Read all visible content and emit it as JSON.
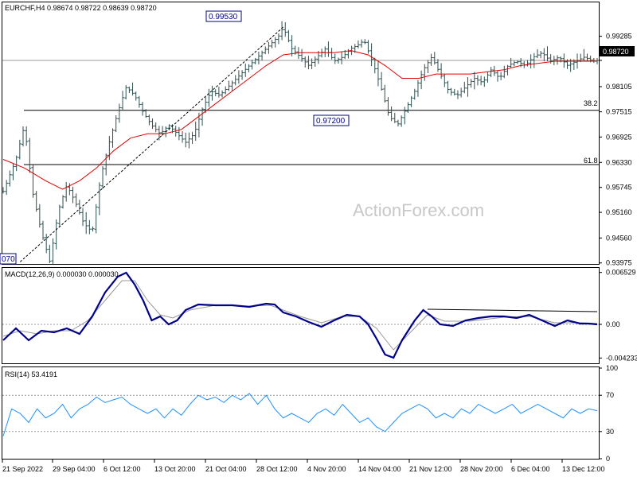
{
  "chart_data": [
    {
      "panel": "price",
      "type": "candlestick",
      "title": "EURCHF,H4  0.98674 0.98722 0.98639 0.98720",
      "ylim": [
        0.9397,
        1.0006
      ],
      "y_ticks": [
        "0.99285",
        "0.98720",
        "0.98105",
        "0.97515",
        "0.96925",
        "0.96330",
        "0.95745",
        "0.95160",
        "0.94560",
        "0.93975"
      ],
      "current_price": "0.98720",
      "high_label": "0.99530",
      "low_label": "0.97200",
      "left_edge_label": "070",
      "fib_levels": [
        {
          "label": "38.2",
          "value": 0.9755
        },
        {
          "label": "61.8",
          "value": 0.9628
        }
      ],
      "moving_average": "red",
      "watermark": "ActionForex.com",
      "path_points": [
        [
          0,
          0.9565
        ],
        [
          3,
          0.964
        ],
        [
          5,
          0.972
        ],
        [
          7,
          0.956
        ],
        [
          9,
          0.947
        ],
        [
          11,
          0.94
        ],
        [
          13,
          0.952
        ],
        [
          15,
          0.958
        ],
        [
          17,
          0.954
        ],
        [
          19,
          0.949
        ],
        [
          21,
          0.947
        ],
        [
          23,
          0.96
        ],
        [
          25,
          0.968
        ],
        [
          27,
          0.975
        ],
        [
          29,
          0.981
        ],
        [
          31,
          0.979
        ],
        [
          33,
          0.975
        ],
        [
          35,
          0.972
        ],
        [
          37,
          0.97
        ],
        [
          39,
          0.972
        ],
        [
          41,
          0.97
        ],
        [
          43,
          0.968
        ],
        [
          45,
          0.97
        ],
        [
          47,
          0.976
        ],
        [
          49,
          0.98
        ],
        [
          51,
          0.979
        ],
        [
          53,
          0.981
        ],
        [
          55,
          0.983
        ],
        [
          57,
          0.985
        ],
        [
          59,
          0.987
        ],
        [
          61,
          0.989
        ],
        [
          63,
          0.991
        ],
        [
          65,
          0.993
        ],
        [
          66,
          0.995
        ],
        [
          68,
          0.99
        ],
        [
          70,
          0.988
        ],
        [
          72,
          0.986
        ],
        [
          74,
          0.988
        ],
        [
          76,
          0.99
        ],
        [
          78,
          0.987
        ],
        [
          80,
          0.988
        ],
        [
          82,
          0.99
        ],
        [
          84,
          0.991
        ],
        [
          85,
          0.992
        ],
        [
          87,
          0.987
        ],
        [
          89,
          0.981
        ],
        [
          91,
          0.974
        ],
        [
          93,
          0.9722
        ],
        [
          95,
          0.976
        ],
        [
          97,
          0.98
        ],
        [
          99,
          0.985
        ],
        [
          101,
          0.988
        ],
        [
          103,
          0.984
        ],
        [
          105,
          0.98
        ],
        [
          107,
          0.979
        ],
        [
          109,
          0.981
        ],
        [
          111,
          0.983
        ],
        [
          113,
          0.982
        ],
        [
          115,
          0.985
        ],
        [
          117,
          0.983
        ],
        [
          119,
          0.986
        ],
        [
          121,
          0.987
        ],
        [
          123,
          0.986
        ],
        [
          125,
          0.988
        ],
        [
          127,
          0.989
        ],
        [
          129,
          0.987
        ],
        [
          131,
          0.988
        ],
        [
          133,
          0.986
        ],
        [
          135,
          0.987
        ],
        [
          137,
          0.988
        ],
        [
          139,
          0.987
        ],
        [
          140,
          0.9872
        ]
      ],
      "ma_points": [
        [
          0,
          0.964
        ],
        [
          5,
          0.962
        ],
        [
          10,
          0.959
        ],
        [
          14,
          0.957
        ],
        [
          18,
          0.959
        ],
        [
          22,
          0.962
        ],
        [
          26,
          0.966
        ],
        [
          30,
          0.969
        ],
        [
          34,
          0.97
        ],
        [
          38,
          0.97
        ],
        [
          42,
          0.971
        ],
        [
          46,
          0.974
        ],
        [
          50,
          0.977
        ],
        [
          54,
          0.98
        ],
        [
          58,
          0.983
        ],
        [
          62,
          0.986
        ],
        [
          66,
          0.9885
        ],
        [
          70,
          0.989
        ],
        [
          74,
          0.989
        ],
        [
          78,
          0.989
        ],
        [
          82,
          0.9895
        ],
        [
          86,
          0.9885
        ],
        [
          90,
          0.986
        ],
        [
          94,
          0.983
        ],
        [
          98,
          0.983
        ],
        [
          102,
          0.984
        ],
        [
          106,
          0.984
        ],
        [
          110,
          0.984
        ],
        [
          114,
          0.9845
        ],
        [
          118,
          0.985
        ],
        [
          122,
          0.986
        ],
        [
          126,
          0.9865
        ],
        [
          130,
          0.987
        ],
        [
          134,
          0.987
        ],
        [
          138,
          0.987
        ],
        [
          140,
          0.987
        ]
      ]
    },
    {
      "panel": "macd",
      "type": "line",
      "title": "MACD(12,26,9) 0.000030 0.000030",
      "ylim": [
        -0.0048,
        0.007
      ],
      "y_ticks": [
        "0.006529",
        "0.00",
        "-0.004233"
      ],
      "macd_points": [
        [
          0,
          -0.002
        ],
        [
          3,
          -0.0005
        ],
        [
          6,
          -0.002
        ],
        [
          9,
          -0.0008
        ],
        [
          12,
          -0.001
        ],
        [
          15,
          -0.0005
        ],
        [
          18,
          -0.0012
        ],
        [
          21,
          0.001
        ],
        [
          24,
          0.004
        ],
        [
          27,
          0.006
        ],
        [
          29,
          0.0065
        ],
        [
          31,
          0.005
        ],
        [
          33,
          0.003
        ],
        [
          35,
          0.0005
        ],
        [
          37,
          0.001
        ],
        [
          39,
          0.0
        ],
        [
          41,
          0.0005
        ],
        [
          43,
          0.0018
        ],
        [
          46,
          0.0025
        ],
        [
          50,
          0.0024
        ],
        [
          54,
          0.0024
        ],
        [
          58,
          0.0022
        ],
        [
          62,
          0.0026
        ],
        [
          64,
          0.0025
        ],
        [
          66,
          0.0015
        ],
        [
          69,
          0.001
        ],
        [
          72,
          0.0003
        ],
        [
          75,
          -0.0003
        ],
        [
          78,
          0.0005
        ],
        [
          81,
          0.0012
        ],
        [
          84,
          0.001
        ],
        [
          86,
          0.0
        ],
        [
          88,
          -0.0018
        ],
        [
          90,
          -0.0038
        ],
        [
          92,
          -0.0042
        ],
        [
          94,
          -0.002
        ],
        [
          97,
          0.0005
        ],
        [
          99,
          0.0018
        ],
        [
          101,
          0.001
        ],
        [
          103,
          0.0
        ],
        [
          106,
          -0.0002
        ],
        [
          109,
          0.0005
        ],
        [
          112,
          0.0008
        ],
        [
          115,
          0.001
        ],
        [
          118,
          0.001
        ],
        [
          121,
          0.0008
        ],
        [
          124,
          0.0012
        ],
        [
          127,
          0.0005
        ],
        [
          130,
          -0.0002
        ],
        [
          133,
          0.0005
        ],
        [
          136,
          0.0001
        ],
        [
          138,
          0.0001
        ],
        [
          140,
          0.0
        ]
      ],
      "signal_points": [
        [
          0,
          -0.0015
        ],
        [
          4,
          -0.0008
        ],
        [
          8,
          -0.0012
        ],
        [
          12,
          -0.0008
        ],
        [
          16,
          -0.0008
        ],
        [
          20,
          0.0005
        ],
        [
          24,
          0.003
        ],
        [
          28,
          0.0055
        ],
        [
          31,
          0.0055
        ],
        [
          34,
          0.003
        ],
        [
          37,
          0.0012
        ],
        [
          40,
          0.0008
        ],
        [
          44,
          0.0018
        ],
        [
          50,
          0.0024
        ],
        [
          58,
          0.0023
        ],
        [
          63,
          0.0024
        ],
        [
          66,
          0.0018
        ],
        [
          70,
          0.001
        ],
        [
          75,
          0.0002
        ],
        [
          80,
          0.001
        ],
        [
          84,
          0.001
        ],
        [
          88,
          -0.0005
        ],
        [
          92,
          -0.0032
        ],
        [
          96,
          -0.001
        ],
        [
          100,
          0.0012
        ],
        [
          104,
          0.0004
        ],
        [
          110,
          0.0004
        ],
        [
          118,
          0.0009
        ],
        [
          124,
          0.001
        ],
        [
          130,
          0.0002
        ],
        [
          136,
          0.0002
        ],
        [
          140,
          0.0001
        ]
      ],
      "resistance_line": [
        [
          100,
          0.0019
        ],
        [
          140,
          0.0016
        ]
      ]
    },
    {
      "panel": "rsi",
      "type": "line",
      "title": "RSI(14) 53.4191",
      "ylim": [
        0,
        100
      ],
      "y_ticks": [
        "100",
        "70",
        "30",
        "0"
      ],
      "levels": [
        70,
        30
      ],
      "rsi_points": [
        [
          0,
          25
        ],
        [
          2,
          55
        ],
        [
          4,
          50
        ],
        [
          6,
          40
        ],
        [
          8,
          55
        ],
        [
          10,
          45
        ],
        [
          12,
          50
        ],
        [
          14,
          60
        ],
        [
          16,
          45
        ],
        [
          18,
          55
        ],
        [
          20,
          60
        ],
        [
          22,
          68
        ],
        [
          24,
          62
        ],
        [
          26,
          65
        ],
        [
          28,
          68
        ],
        [
          30,
          60
        ],
        [
          32,
          55
        ],
        [
          34,
          50
        ],
        [
          36,
          55
        ],
        [
          38,
          45
        ],
        [
          40,
          55
        ],
        [
          42,
          48
        ],
        [
          44,
          60
        ],
        [
          46,
          70
        ],
        [
          48,
          65
        ],
        [
          50,
          68
        ],
        [
          52,
          62
        ],
        [
          54,
          70
        ],
        [
          56,
          65
        ],
        [
          58,
          72
        ],
        [
          60,
          60
        ],
        [
          62,
          70
        ],
        [
          64,
          55
        ],
        [
          66,
          45
        ],
        [
          68,
          50
        ],
        [
          70,
          45
        ],
        [
          72,
          40
        ],
        [
          74,
          50
        ],
        [
          76,
          55
        ],
        [
          78,
          48
        ],
        [
          80,
          60
        ],
        [
          82,
          50
        ],
        [
          84,
          40
        ],
        [
          86,
          45
        ],
        [
          88,
          35
        ],
        [
          90,
          30
        ],
        [
          92,
          40
        ],
        [
          94,
          50
        ],
        [
          96,
          55
        ],
        [
          98,
          60
        ],
        [
          100,
          55
        ],
        [
          102,
          45
        ],
        [
          104,
          50
        ],
        [
          106,
          45
        ],
        [
          108,
          55
        ],
        [
          110,
          50
        ],
        [
          112,
          60
        ],
        [
          114,
          55
        ],
        [
          116,
          50
        ],
        [
          118,
          55
        ],
        [
          120,
          60
        ],
        [
          122,
          50
        ],
        [
          124,
          55
        ],
        [
          126,
          60
        ],
        [
          128,
          55
        ],
        [
          130,
          50
        ],
        [
          132,
          45
        ],
        [
          134,
          55
        ],
        [
          136,
          50
        ],
        [
          138,
          55
        ],
        [
          140,
          53
        ]
      ]
    }
  ],
  "x_axis": {
    "ticks": [
      "21 Sep 2022",
      "29 Sep 04:00",
      "6 Oct 12:00",
      "13 Oct 20:00",
      "21 Oct 04:00",
      "28 Oct 12:00",
      "4 Nov 20:00",
      "14 Nov 04:00",
      "21 Nov 12:00",
      "28 Nov 20:00",
      "6 Dec 04:00",
      "13 Dec 12:00"
    ]
  }
}
